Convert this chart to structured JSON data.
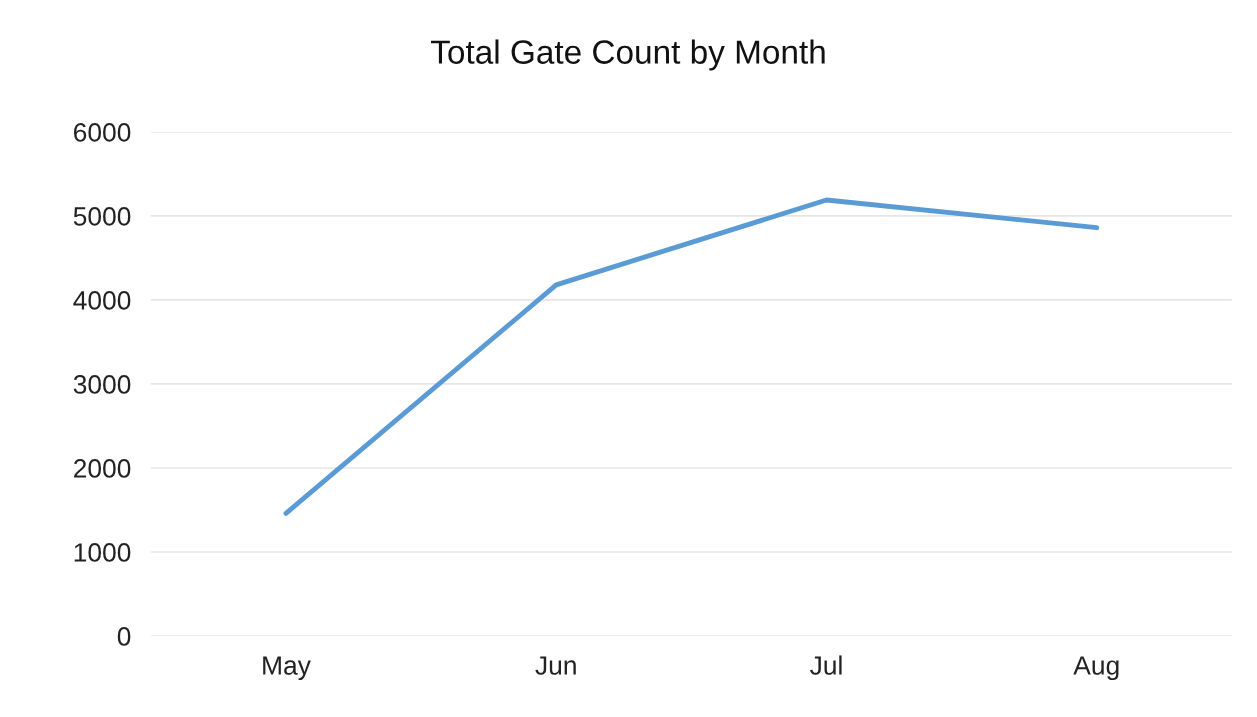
{
  "chart_data": {
    "type": "line",
    "title": "Total Gate Count by Month",
    "categories": [
      "May",
      "Jun",
      "Jul",
      "Aug"
    ],
    "series": [
      {
        "color": "#5b9bd5",
        "values": [
          1460,
          4180,
          5190,
          4860
        ]
      }
    ],
    "ylim": [
      0,
      6000
    ],
    "yticks": [
      0,
      1000,
      2000,
      3000,
      4000,
      5000,
      6000
    ],
    "grid": "y",
    "marker": "none",
    "line_style": "solid"
  }
}
